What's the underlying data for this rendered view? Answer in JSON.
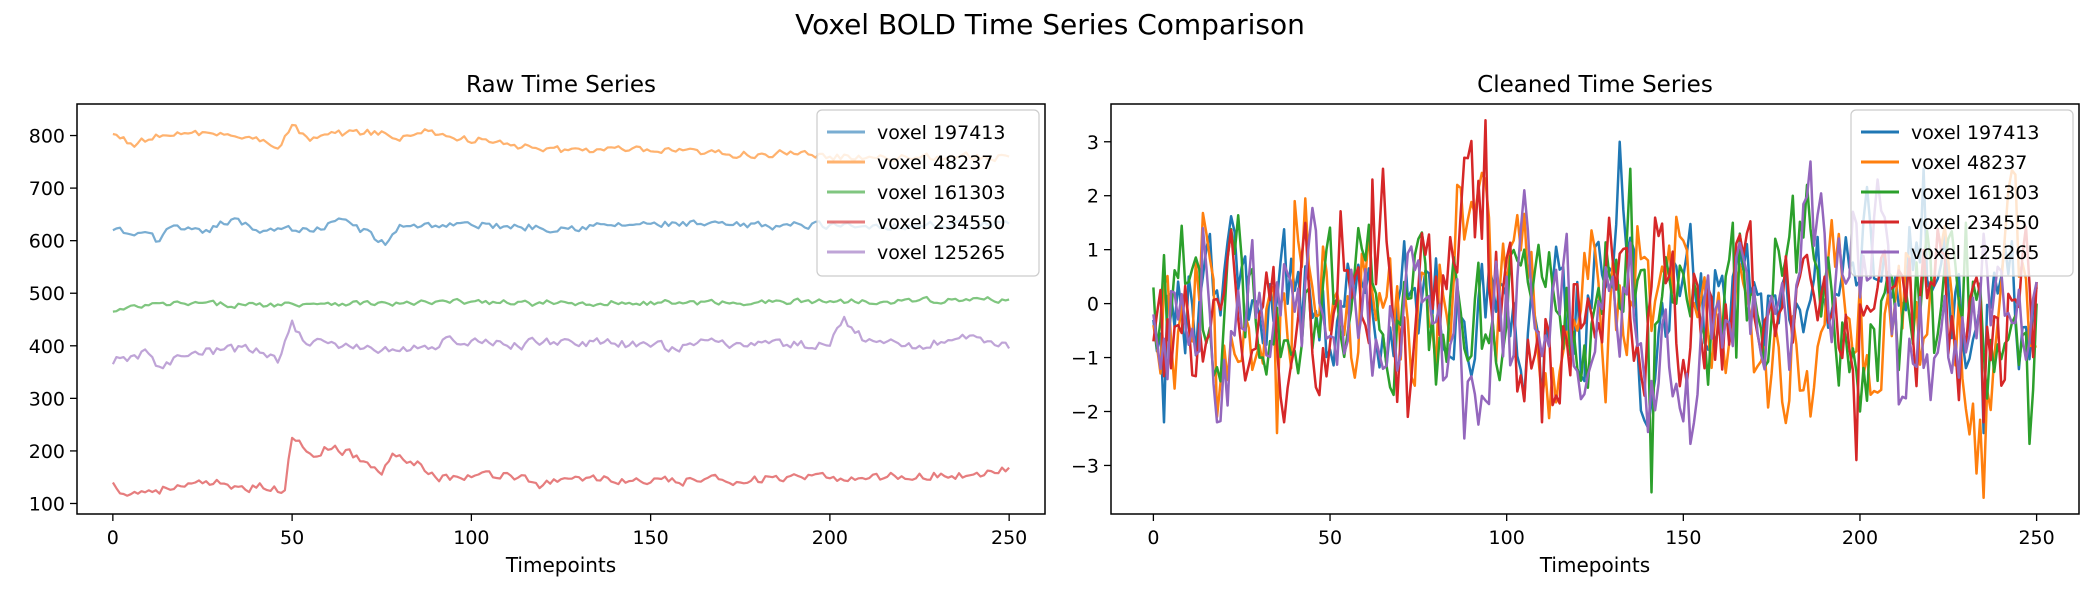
{
  "figure_title": "Voxel BOLD Time Series Comparison",
  "colors": {
    "voxel_197413": "#1f77b4",
    "voxel_48237": "#ff7f0e",
    "voxel_161303": "#2ca02c",
    "voxel_234550": "#d62728",
    "voxel_125265": "#9467bd"
  },
  "chart_data": [
    {
      "type": "line",
      "title": "Raw Time Series",
      "xlabel": "Timepoints",
      "ylabel": "",
      "xlim": [
        -10,
        260
      ],
      "ylim": [
        80,
        860
      ],
      "xticks": [
        0,
        50,
        100,
        150,
        200,
        250
      ],
      "yticks": [
        100,
        200,
        300,
        400,
        500,
        600,
        700,
        800
      ],
      "line_alpha": 0.6,
      "legend_position": "top-right",
      "series": [
        {
          "name": "voxel 197413",
          "color": "#1f77b4",
          "mean": 625,
          "amp": 7,
          "points": [
            [
              0,
              620
            ],
            [
              5,
              612
            ],
            [
              10,
              615
            ],
            [
              12,
              598
            ],
            [
              15,
              622
            ],
            [
              25,
              615
            ],
            [
              33,
              640
            ],
            [
              40,
              620
            ],
            [
              48,
              625
            ],
            [
              55,
              618
            ],
            [
              65,
              640
            ],
            [
              76,
              592
            ],
            [
              80,
              630
            ],
            [
              100,
              630
            ],
            [
              125,
              625
            ],
            [
              150,
              632
            ],
            [
              175,
              628
            ],
            [
              200,
              630
            ],
            [
              225,
              628
            ],
            [
              250,
              632
            ]
          ]
        },
        {
          "name": "voxel 48237",
          "color": "#ff7f0e",
          "mean": 790,
          "amp": 7,
          "points": [
            [
              0,
              803
            ],
            [
              5,
              785
            ],
            [
              15,
              800
            ],
            [
              30,
              805
            ],
            [
              47,
              782
            ],
            [
              50,
              820
            ],
            [
              55,
              790
            ],
            [
              65,
              805
            ],
            [
              75,
              808
            ],
            [
              80,
              790
            ],
            [
              87,
              812
            ],
            [
              95,
              795
            ],
            [
              110,
              785
            ],
            [
              120,
              770
            ],
            [
              130,
              775
            ],
            [
              150,
              770
            ],
            [
              170,
              765
            ],
            [
              190,
              765
            ],
            [
              200,
              760
            ],
            [
              230,
              760
            ],
            [
              250,
              760
            ]
          ]
        },
        {
          "name": "voxel 161303",
          "color": "#2ca02c",
          "mean": 480,
          "amp": 5,
          "points": [
            [
              0,
              465
            ],
            [
              10,
              477
            ],
            [
              20,
              480
            ],
            [
              40,
              478
            ],
            [
              60,
              482
            ],
            [
              80,
              480
            ],
            [
              100,
              484
            ],
            [
              120,
              480
            ],
            [
              140,
              482
            ],
            [
              160,
              482
            ],
            [
              180,
              483
            ],
            [
              200,
              485
            ],
            [
              220,
              486
            ],
            [
              250,
              488
            ]
          ]
        },
        {
          "name": "voxel 234550",
          "color": "#d62728",
          "mean": 150,
          "amp": 8,
          "points": [
            [
              0,
              140
            ],
            [
              3,
              118
            ],
            [
              10,
              125
            ],
            [
              20,
              132
            ],
            [
              30,
              138
            ],
            [
              40,
              130
            ],
            [
              48,
              125
            ],
            [
              50,
              225
            ],
            [
              55,
              195
            ],
            [
              62,
              210
            ],
            [
              70,
              180
            ],
            [
              75,
              155
            ],
            [
              78,
              195
            ],
            [
              85,
              180
            ],
            [
              90,
              150
            ],
            [
              100,
              150
            ],
            [
              110,
              158
            ],
            [
              120,
              135
            ],
            [
              130,
              150
            ],
            [
              150,
              140
            ],
            [
              170,
              145
            ],
            [
              200,
              148
            ],
            [
              220,
              152
            ],
            [
              240,
              155
            ],
            [
              250,
              168
            ]
          ]
        },
        {
          "name": "voxel 125265",
          "color": "#9467bd",
          "mean": 395,
          "amp": 9,
          "points": [
            [
              0,
              365
            ],
            [
              5,
              380
            ],
            [
              10,
              385
            ],
            [
              12,
              362
            ],
            [
              20,
              380
            ],
            [
              30,
              392
            ],
            [
              40,
              395
            ],
            [
              46,
              368
            ],
            [
              50,
              448
            ],
            [
              53,
              410
            ],
            [
              60,
              405
            ],
            [
              70,
              395
            ],
            [
              80,
              390
            ],
            [
              95,
              410
            ],
            [
              110,
              400
            ],
            [
              125,
              410
            ],
            [
              150,
              398
            ],
            [
              175,
              405
            ],
            [
              200,
              400
            ],
            [
              204,
              455
            ],
            [
              210,
              408
            ],
            [
              225,
              400
            ],
            [
              240,
              420
            ],
            [
              250,
              395
            ]
          ]
        }
      ]
    },
    {
      "type": "line",
      "title": "Cleaned Time Series",
      "xlabel": "Timepoints",
      "ylabel": "",
      "xlim": [
        -12,
        262
      ],
      "ylim": [
        -3.9,
        3.7
      ],
      "xticks": [
        0,
        50,
        100,
        150,
        200,
        250
      ],
      "yticks": [
        -3,
        -2,
        -1,
        0,
        1,
        2,
        3
      ],
      "line_alpha": 1.0,
      "legend_position": "top-right",
      "series": [
        {
          "name": "voxel 197413",
          "color": "#1f77b4",
          "amp": 0.9,
          "points": [
            [
              0,
              -0.3
            ],
            [
              3,
              -2.2
            ],
            [
              10,
              0.5
            ],
            [
              30,
              -0.2
            ],
            [
              60,
              0.2
            ],
            [
              100,
              0.1
            ],
            [
              110,
              -1.9
            ],
            [
              120,
              0.4
            ],
            [
              132,
              3.0
            ],
            [
              136,
              1.0
            ],
            [
              140,
              -2.3
            ],
            [
              150,
              0.5
            ],
            [
              180,
              -0.3
            ],
            [
              218,
              2.5
            ],
            [
              225,
              0.3
            ],
            [
              235,
              -2.4
            ],
            [
              240,
              0.5
            ],
            [
              250,
              0.3
            ]
          ]
        },
        {
          "name": "voxel 48237",
          "color": "#ff7f0e",
          "amp": 1.1,
          "points": [
            [
              0,
              -0.4
            ],
            [
              15,
              1.3
            ],
            [
              18,
              -2.1
            ],
            [
              35,
              -2.4
            ],
            [
              40,
              1.9
            ],
            [
              60,
              0.5
            ],
            [
              80,
              -1.2
            ],
            [
              86,
              2.2
            ],
            [
              100,
              0.3
            ],
            [
              120,
              -0.5
            ],
            [
              140,
              0.8
            ],
            [
              160,
              0.2
            ],
            [
              180,
              -1.8
            ],
            [
              200,
              0.4
            ],
            [
              220,
              0.3
            ],
            [
              235,
              -3.6
            ],
            [
              238,
              -1.0
            ],
            [
              242,
              2.1
            ],
            [
              250,
              -0.8
            ]
          ]
        },
        {
          "name": "voxel 161303",
          "color": "#2ca02c",
          "amp": 1.0,
          "points": [
            [
              0,
              0.3
            ],
            [
              3,
              0.9
            ],
            [
              10,
              0.4
            ],
            [
              30,
              -1.0
            ],
            [
              60,
              0.8
            ],
            [
              80,
              -1.5
            ],
            [
              105,
              1.0
            ],
            [
              120,
              -1.2
            ],
            [
              130,
              0.3
            ],
            [
              135,
              2.5
            ],
            [
              141,
              -3.5
            ],
            [
              146,
              0.5
            ],
            [
              165,
              -1.0
            ],
            [
              185,
              2.2
            ],
            [
              200,
              -2.0
            ],
            [
              220,
              0.8
            ],
            [
              230,
              1.5
            ],
            [
              248,
              -2.6
            ],
            [
              250,
              0.0
            ]
          ]
        },
        {
          "name": "voxel 234550",
          "color": "#d62728",
          "amp": 1.0,
          "points": [
            [
              0,
              -0.7
            ],
            [
              5,
              -1.2
            ],
            [
              20,
              0.2
            ],
            [
              40,
              -0.8
            ],
            [
              62,
              2.3
            ],
            [
              65,
              2.5
            ],
            [
              72,
              -2.1
            ],
            [
              80,
              0.5
            ],
            [
              94,
              3.4
            ],
            [
              98,
              -0.5
            ],
            [
              110,
              -2.2
            ],
            [
              130,
              0.8
            ],
            [
              160,
              -0.2
            ],
            [
              190,
              0.5
            ],
            [
              199,
              -2.9
            ],
            [
              205,
              0.3
            ],
            [
              220,
              0.4
            ],
            [
              235,
              -2.2
            ],
            [
              250,
              0.4
            ]
          ]
        },
        {
          "name": "voxel 125265",
          "color": "#9467bd",
          "amp": 1.0,
          "points": [
            [
              0,
              -0.2
            ],
            [
              4,
              -1.4
            ],
            [
              14,
              1.4
            ],
            [
              18,
              -2.2
            ],
            [
              30,
              0.2
            ],
            [
              50,
              -0.6
            ],
            [
              75,
              0.8
            ],
            [
              88,
              -2.5
            ],
            [
              100,
              0.5
            ],
            [
              105,
              2.1
            ],
            [
              115,
              -0.2
            ],
            [
              130,
              0.5
            ],
            [
              152,
              -2.6
            ],
            [
              170,
              0.3
            ],
            [
              205,
              2.3
            ],
            [
              210,
              0.0
            ],
            [
              225,
              -1.0
            ],
            [
              240,
              0.6
            ],
            [
              250,
              0.4
            ]
          ]
        }
      ]
    }
  ]
}
